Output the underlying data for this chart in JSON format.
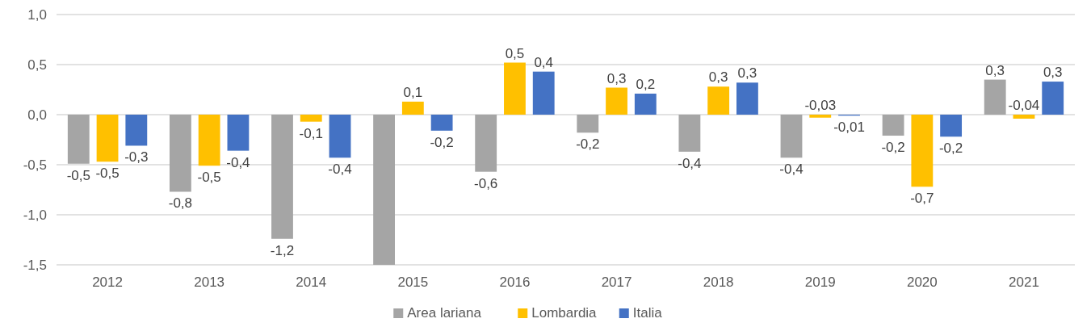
{
  "chart_data": {
    "type": "bar",
    "categories": [
      "2012",
      "2013",
      "2014",
      "2015",
      "2016",
      "2017",
      "2018",
      "2019",
      "2020",
      "2021"
    ],
    "series": [
      {
        "name": "Area lariana",
        "color": "#a5a5a5",
        "values": [
          -0.49,
          -0.77,
          -1.24,
          -1.5,
          -0.57,
          -0.18,
          -0.37,
          -0.43,
          -0.21,
          0.35
        ],
        "value_labels": [
          "-0,5",
          "-0,8",
          "-1,2",
          null,
          "-0,6",
          "-0,2",
          "-0,4",
          "-0,4",
          "-0,2",
          "0,3"
        ]
      },
      {
        "name": "Lombardia",
        "color": "#ffc000",
        "values": [
          -0.47,
          -0.51,
          -0.07,
          0.13,
          0.52,
          0.27,
          0.28,
          -0.03,
          -0.72,
          -0.04
        ],
        "value_labels": [
          "-0,5",
          "-0,5",
          "-0,1",
          "0,1",
          "0,5",
          "0,3",
          "0,3",
          "-0,03",
          "-0,7",
          "-0,04"
        ]
      },
      {
        "name": "Italia",
        "color": "#4472c4",
        "values": [
          -0.31,
          -0.36,
          -0.43,
          -0.16,
          0.43,
          0.21,
          0.32,
          -0.01,
          -0.22,
          0.33
        ],
        "value_labels": [
          "-0,3",
          "-0,4",
          "-0,4",
          "-0,2",
          "0,4",
          "0,2",
          "0,3",
          "-0,01",
          "-0,2",
          "0,3"
        ]
      }
    ],
    "ylim": [
      -1.5,
      1.0
    ],
    "yticks": [
      {
        "value": -1.5,
        "label": "-1,5"
      },
      {
        "value": -1.0,
        "label": "-1,0"
      },
      {
        "value": -0.5,
        "label": "-0,5"
      },
      {
        "value": 0,
        "label": "0,0"
      },
      {
        "value": 0.5,
        "label": "0,5"
      },
      {
        "value": 1.0,
        "label": "1,0"
      }
    ],
    "grid": "y",
    "legend": "bottom"
  }
}
